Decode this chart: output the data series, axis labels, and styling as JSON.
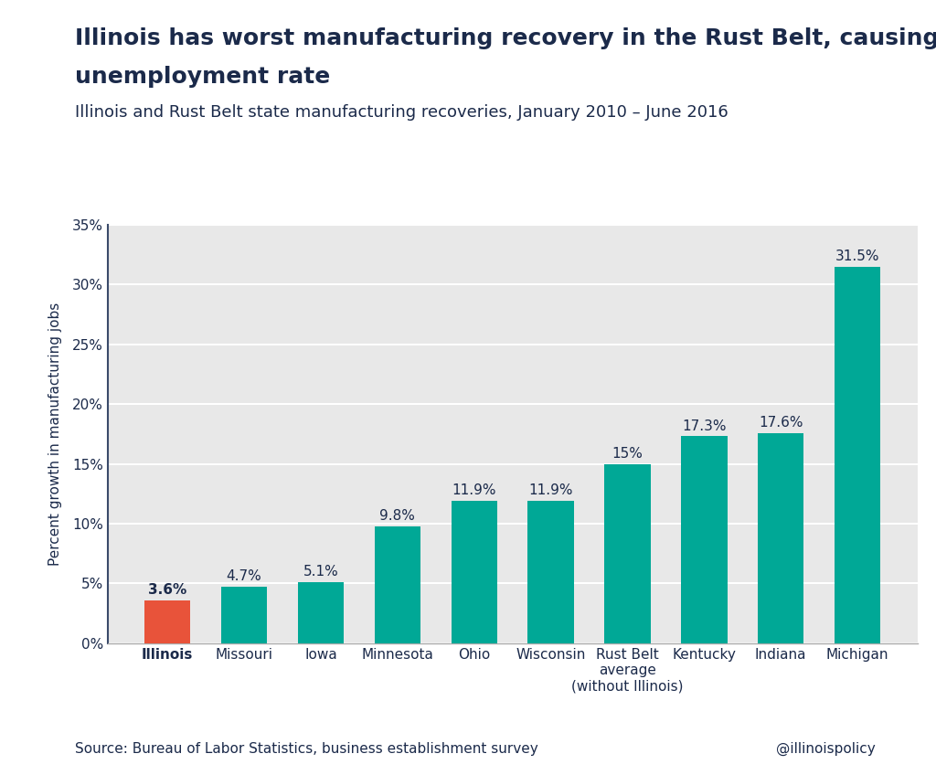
{
  "title_line1": "Illinois has worst manufacturing recovery in the Rust Belt, causing state’s high",
  "title_line2": "unemployment rate",
  "subtitle": "Illinois and Rust Belt state manufacturing recoveries, January 2010 – June 2016",
  "categories": [
    "Illinois",
    "Missouri",
    "Iowa",
    "Minnesota",
    "Ohio",
    "Wisconsin",
    "Rust Belt\naverage\n(without Illinois)",
    "Kentucky",
    "Indiana",
    "Michigan"
  ],
  "values": [
    3.6,
    4.7,
    5.1,
    9.8,
    11.9,
    11.9,
    15.0,
    17.3,
    17.6,
    31.5
  ],
  "value_labels": [
    "3.6%",
    "4.7%",
    "5.1%",
    "9.8%",
    "11.9%",
    "11.9%",
    "15%",
    "17.3%",
    "17.6%",
    "31.5%"
  ],
  "bar_colors": [
    "#E8533A",
    "#00A896",
    "#00A896",
    "#00A896",
    "#00A896",
    "#00A896",
    "#00A896",
    "#00A896",
    "#00A896",
    "#00A896"
  ],
  "ylabel": "Percent growth in manufacturing jobs",
  "ylim": [
    0,
    35
  ],
  "yticks": [
    0,
    5,
    10,
    15,
    20,
    25,
    30,
    35
  ],
  "ytick_labels": [
    "0%",
    "5%",
    "10%",
    "15%",
    "20%",
    "25%",
    "30%",
    "35%"
  ],
  "source_text": "Source: Bureau of Labor Statistics, business establishment survey",
  "watermark": "@illinoispolicy",
  "background_color": "#FFFFFF",
  "plot_bg_color": "#E8E8E8",
  "title_color": "#1B2A4A",
  "subtitle_color": "#1B2A4A",
  "axis_label_color": "#1B2A4A",
  "tick_color": "#1B2A4A",
  "bar_label_color": "#1B2A4A",
  "title_fontsize": 18,
  "subtitle_fontsize": 13,
  "ylabel_fontsize": 11,
  "tick_fontsize": 11,
  "bar_label_fontsize": 11,
  "source_fontsize": 11,
  "watermark_fontsize": 11
}
